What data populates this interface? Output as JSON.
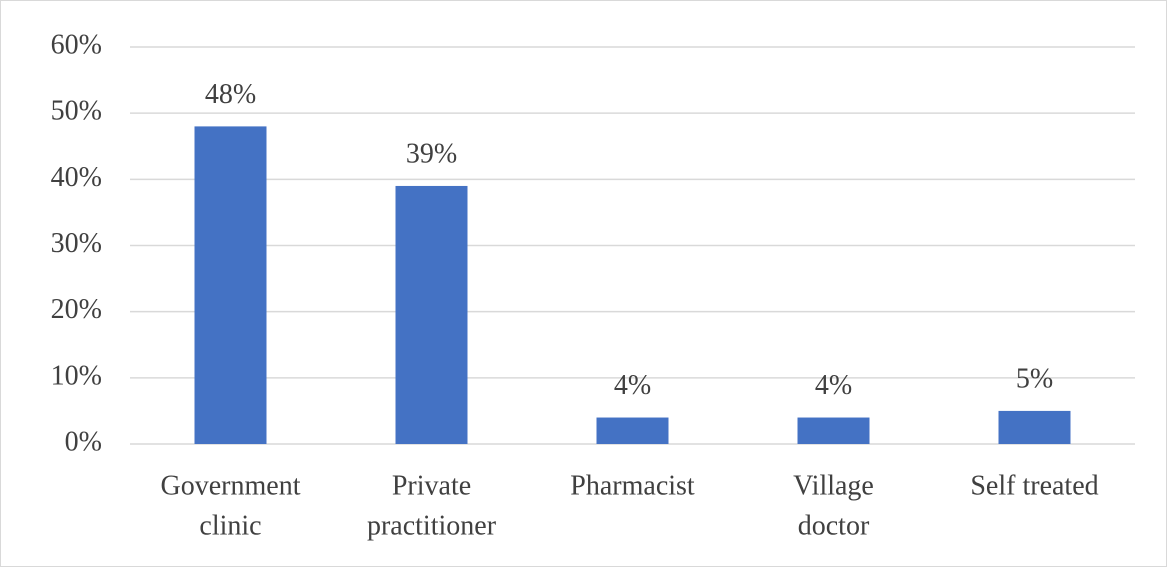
{
  "chart_data": {
    "type": "bar",
    "categories": [
      [
        "Government",
        "clinic"
      ],
      [
        "Private",
        "practitioner"
      ],
      [
        "Pharmacist"
      ],
      [
        "Village",
        "doctor"
      ],
      [
        "Self treated"
      ]
    ],
    "values": [
      48,
      39,
      4,
      4,
      5
    ],
    "value_labels": [
      "48%",
      "39%",
      "4%",
      "4%",
      "5%"
    ],
    "color": "#4472c4",
    "ylim": [
      0,
      60
    ],
    "yticks": [
      {
        "value": 0,
        "label": "0%"
      },
      {
        "value": 10,
        "label": "10%"
      },
      {
        "value": 20,
        "label": "20%"
      },
      {
        "value": 30,
        "label": "30%"
      },
      {
        "value": 40,
        "label": "40%"
      },
      {
        "value": 50,
        "label": "50%"
      },
      {
        "value": 60,
        "label": "60%"
      }
    ],
    "grid": true
  }
}
